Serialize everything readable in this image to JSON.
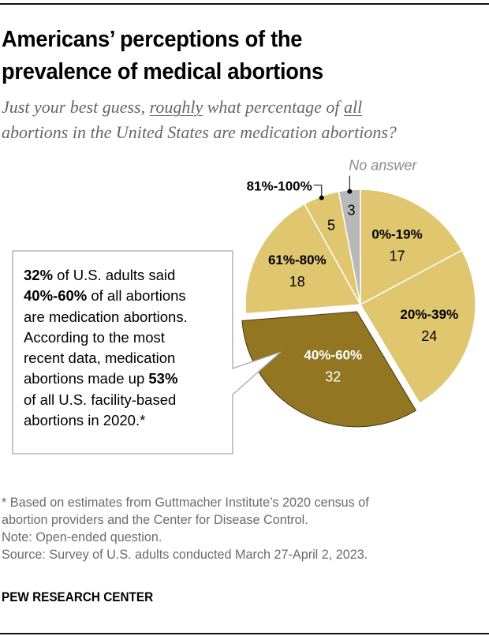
{
  "header": {
    "title_line1": "Americans’ perceptions of the",
    "title_line2": "prevalence of medical abortions",
    "subtitle_parts": {
      "a": "Just your best guess, ",
      "b": "roughly",
      "c": " what percentage of ",
      "d": "all",
      "e": "abortions in the United States are medication abortions?"
    }
  },
  "chart_data": {
    "type": "pie",
    "title": "Americans’ perceptions of the prevalence of medical abortions",
    "subtitle": "Just your best guess, roughly what percentage of all abortions in the United States are medication abortions?",
    "start": "12 o'clock, clockwise",
    "slices": [
      {
        "label": "0%-19%",
        "value": 17,
        "color": "#dfc66f",
        "exploded": false,
        "label_color": "#000000"
      },
      {
        "label": "20%-39%",
        "value": 24,
        "color": "#dfc66f",
        "exploded": false,
        "label_color": "#000000"
      },
      {
        "label": "40%-60%",
        "value": 32,
        "color": "#937622",
        "exploded": true,
        "label_color": "#ffffff"
      },
      {
        "label": "61%-80%",
        "value": 18,
        "color": "#dfc66f",
        "exploded": false,
        "label_color": "#000000"
      },
      {
        "label": "81%-100%",
        "value": 5,
        "color": "#dfc66f",
        "exploded": false,
        "label_color": "#000000",
        "label_outside": true
      },
      {
        "label": "No answer",
        "value": 3,
        "color": "#b8b8b8",
        "exploded": false,
        "label_color": "#8a8a8a",
        "label_outside": true,
        "label_italic": true
      }
    ]
  },
  "callout": {
    "l1_bold": "32%",
    "l1_rest": " of U.S. adults said",
    "l2_bold": "40%-60%",
    "l2_rest": " of all abortions",
    "l3": "are medication abortions.",
    "l4": "According to the most",
    "l5": "recent data, medication",
    "l6_pre": "abortions made up ",
    "l6_bold": "53%",
    "l7": "of all U.S. facility-based",
    "l8": "abortions in 2020.*"
  },
  "notes": {
    "footnote_l1": "* Based on estimates from Guttmacher Institute’s 2020 census of",
    "footnote_l2": "abortion providers and the Center for Disease Control.",
    "note": "Note: Open-ended question.",
    "source": "Source: Survey of U.S. adults conducted March 27-April 2, 2023."
  },
  "brand": "PEW RESEARCH CENTER"
}
